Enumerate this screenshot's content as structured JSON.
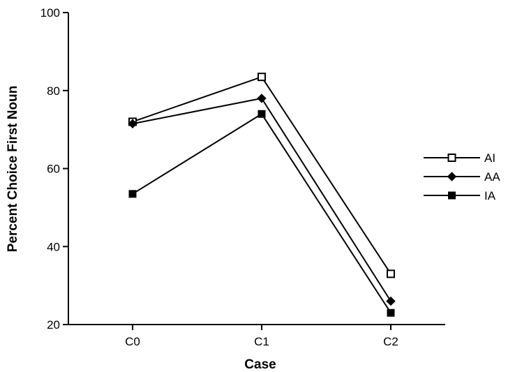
{
  "chart_data": {
    "type": "line",
    "title": "",
    "xlabel": "Case",
    "ylabel": "Percent Choice First Noun",
    "categories": [
      "C0",
      "C1",
      "C2"
    ],
    "ylim": [
      20,
      100
    ],
    "yticks": [
      20,
      40,
      60,
      80,
      100
    ],
    "grid": false,
    "legend_position": "right",
    "series": [
      {
        "name": "AI",
        "marker": "open-square",
        "values": [
          72,
          83.5,
          33
        ]
      },
      {
        "name": "AA",
        "marker": "diamond",
        "values": [
          71.5,
          78,
          26
        ]
      },
      {
        "name": "IA",
        "marker": "filled-square",
        "values": [
          53.5,
          74,
          23
        ]
      }
    ],
    "colors": {
      "ink": "#000000",
      "background": "#ffffff"
    }
  }
}
